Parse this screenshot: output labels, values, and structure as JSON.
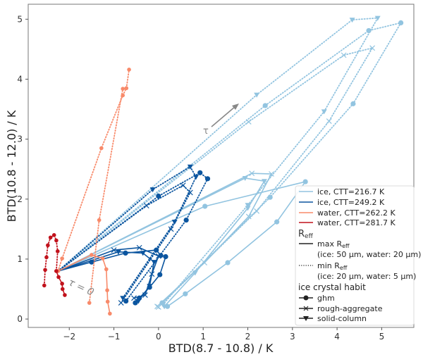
{
  "chart_data": {
    "type": "line",
    "xlabel": "BTD(8.7 - 10.8) / K",
    "ylabel": "BTD(10.8 - 12.0) / K",
    "xlim": [
      -2.92,
      5.72
    ],
    "ylim": [
      -0.14,
      5.25
    ],
    "xticks": [
      -2,
      -1,
      0,
      1,
      2,
      3,
      4,
      5
    ],
    "yticks": [
      0,
      1,
      2,
      3,
      4,
      5
    ],
    "grid": false,
    "legend_position": "bottom-right",
    "annotations": {
      "tau0": "τ = 0",
      "tau": "τ"
    },
    "colors": {
      "ice_216": "#92c4e0",
      "ice_249": "#0b559f",
      "water_262": "#f88a6a",
      "water_281": "#c1121c"
    },
    "legend": {
      "series": [
        "ice, CTT=216.7 K",
        "ice, CTT=249.2 K",
        "water, CTT=262.2 K",
        "water, CTT=281.7 K"
      ],
      "reff_title": "R",
      "reff_sub": "eff",
      "max_label": "max R",
      "max_note": "(ice: 50 µm, water: 20 µm)",
      "min_label": "min R",
      "min_note": "(ice: 20 µm, water: 5 µm)",
      "habit_title": "ice crystal habit",
      "habits": [
        "ghm",
        "rough-aggregate",
        "solid-column"
      ]
    },
    "series": [
      {
        "name": "ice, CTT=216.7 K",
        "color": "ice_216",
        "style": "solid",
        "marker": "circle",
        "points": [
          [
            -2.25,
            0.8
          ],
          [
            1.04,
            1.88
          ],
          [
            3.29,
            2.29
          ],
          [
            2.65,
            1.62
          ],
          [
            1.55,
            0.94
          ],
          [
            0.6,
            0.42
          ],
          [
            0.2,
            0.21
          ]
        ]
      },
      {
        "name": "ice, CTT=216.7 K",
        "color": "ice_216",
        "style": "solid",
        "marker": "x",
        "points": [
          [
            -2.25,
            0.8
          ],
          [
            2.09,
            2.43
          ],
          [
            2.53,
            2.42
          ],
          [
            2.02,
            1.71
          ],
          [
            1.03,
            0.94
          ],
          [
            -0.03,
            0.21
          ]
        ]
      },
      {
        "name": "ice, CTT=216.7 K",
        "color": "ice_216",
        "style": "solid",
        "marker": "tri",
        "points": [
          [
            -2.25,
            0.8
          ],
          [
            1.94,
            2.35
          ],
          [
            2.37,
            2.3
          ],
          [
            2.0,
            1.85
          ],
          [
            0.82,
            0.77
          ],
          [
            0.13,
            0.21
          ]
        ]
      },
      {
        "name": "ice, CTT=216.7 K",
        "color": "ice_216",
        "style": "dotted",
        "marker": "circle",
        "points": [
          [
            -2.25,
            0.8
          ],
          [
            2.39,
            3.56
          ],
          [
            4.71,
            4.81
          ],
          [
            5.43,
            4.94
          ],
          [
            4.36,
            3.59
          ],
          [
            2.5,
            2.03
          ],
          [
            0.08,
            0.27
          ]
        ]
      },
      {
        "name": "ice, CTT=216.7 K",
        "color": "ice_216",
        "style": "dotted",
        "marker": "x",
        "points": [
          [
            -2.25,
            0.8
          ],
          [
            2.02,
            3.29
          ],
          [
            4.15,
            4.4
          ],
          [
            4.79,
            4.52
          ],
          [
            3.82,
            3.3
          ],
          [
            2.2,
            1.8
          ],
          [
            0.0,
            0.2
          ]
        ]
      },
      {
        "name": "ice, CTT=216.7 K",
        "color": "ice_216",
        "style": "dotted",
        "marker": "tri",
        "points": [
          [
            -2.25,
            0.8
          ],
          [
            2.2,
            3.74
          ],
          [
            4.34,
            4.99
          ],
          [
            4.91,
            5.02
          ],
          [
            3.71,
            3.46
          ],
          [
            2.0,
            1.9
          ],
          [
            0.1,
            0.24
          ]
        ]
      },
      {
        "name": "ice, CTT=249.2 K",
        "color": "ice_249",
        "style": "solid",
        "marker": "circle",
        "points": [
          [
            -2.25,
            0.8
          ],
          [
            -1.5,
            0.95
          ],
          [
            -0.74,
            1.1
          ],
          [
            -0.05,
            1.15
          ],
          [
            0.05,
            1.06
          ],
          [
            0.16,
            1.04
          ],
          [
            0.03,
            0.74
          ],
          [
            -0.2,
            0.53
          ],
          [
            -0.43,
            0.35
          ],
          [
            -0.52,
            0.27
          ]
        ]
      },
      {
        "name": "ice, CTT=249.2 K",
        "color": "ice_249",
        "style": "solid",
        "marker": "x",
        "points": [
          [
            -2.25,
            0.8
          ],
          [
            -1.0,
            1.15
          ],
          [
            -0.43,
            1.19
          ],
          [
            0.0,
            1.05
          ],
          [
            -0.15,
            0.75
          ],
          [
            -0.3,
            0.4
          ],
          [
            -0.55,
            0.35
          ]
        ]
      },
      {
        "name": "ice, CTT=249.2 K",
        "color": "ice_249",
        "style": "solid",
        "marker": "tri",
        "points": [
          [
            -2.25,
            0.8
          ],
          [
            -0.9,
            1.12
          ],
          [
            -0.35,
            1.1
          ],
          [
            -0.1,
            0.95
          ],
          [
            -0.2,
            0.55
          ],
          [
            -0.45,
            0.3
          ]
        ]
      },
      {
        "name": "ice, CTT=249.2 K",
        "color": "ice_249",
        "style": "dotted",
        "marker": "circle",
        "points": [
          [
            -2.25,
            0.8
          ],
          [
            0.0,
            2.05
          ],
          [
            0.93,
            2.44
          ],
          [
            1.1,
            2.34
          ],
          [
            0.62,
            1.65
          ],
          [
            -0.73,
            0.3
          ]
        ]
      },
      {
        "name": "ice, CTT=249.2 K",
        "color": "ice_249",
        "style": "dotted",
        "marker": "x",
        "points": [
          [
            -2.25,
            0.8
          ],
          [
            -0.27,
            1.89
          ],
          [
            0.55,
            2.23
          ],
          [
            0.71,
            2.11
          ],
          [
            0.28,
            1.5
          ],
          [
            -0.84,
            0.27
          ]
        ]
      },
      {
        "name": "ice, CTT=249.2 K",
        "color": "ice_249",
        "style": "dotted",
        "marker": "tri",
        "points": [
          [
            -2.25,
            0.8
          ],
          [
            -0.13,
            2.16
          ],
          [
            0.71,
            2.54
          ],
          [
            0.84,
            2.37
          ],
          [
            0.36,
            1.62
          ],
          [
            -0.8,
            0.35
          ]
        ]
      },
      {
        "name": "water, CTT=262.2 K",
        "color": "water_262",
        "style": "solid",
        "marker": "dot",
        "points": [
          [
            -2.25,
            0.8
          ],
          [
            -1.5,
            1.07
          ],
          [
            -1.25,
            1.01
          ],
          [
            -1.17,
            0.83
          ],
          [
            -1.15,
            0.48
          ],
          [
            -1.14,
            0.29
          ],
          [
            -1.09,
            0.09
          ]
        ]
      },
      {
        "name": "water, CTT=262.2 K",
        "color": "water_262",
        "style": "dotted",
        "marker": "dot",
        "points": [
          [
            -2.25,
            0.8
          ],
          [
            -2.16,
            1.01
          ],
          [
            -1.28,
            2.85
          ],
          [
            -0.8,
            3.73
          ],
          [
            -0.72,
            3.85
          ],
          [
            -0.66,
            4.16
          ]
        ]
      },
      {
        "name": "water, CTT=262.2 K",
        "color": "water_262",
        "style": "dotted",
        "marker": "dot",
        "points": [
          [
            -1.55,
            0.27
          ],
          [
            -1.33,
            1.65
          ],
          [
            -0.8,
            3.84
          ]
        ]
      },
      {
        "name": "water, CTT=281.7 K",
        "color": "water_281",
        "style": "dotted",
        "marker": "dot",
        "points": [
          [
            -2.56,
            0.56
          ],
          [
            -2.54,
            0.82
          ],
          [
            -2.51,
            1.03
          ],
          [
            -2.48,
            1.23
          ],
          [
            -2.42,
            1.36
          ],
          [
            -2.34,
            1.4
          ],
          [
            -2.29,
            1.31
          ],
          [
            -2.26,
            1.13
          ],
          [
            -2.29,
            0.8
          ]
        ]
      },
      {
        "name": "water, CTT=281.7 K",
        "color": "water_281",
        "style": "solid",
        "marker": "dot",
        "points": [
          [
            -2.29,
            0.8
          ],
          [
            -2.24,
            0.7
          ],
          [
            -2.16,
            0.59
          ],
          [
            -2.15,
            0.5
          ],
          [
            -2.1,
            0.4
          ]
        ]
      }
    ]
  }
}
